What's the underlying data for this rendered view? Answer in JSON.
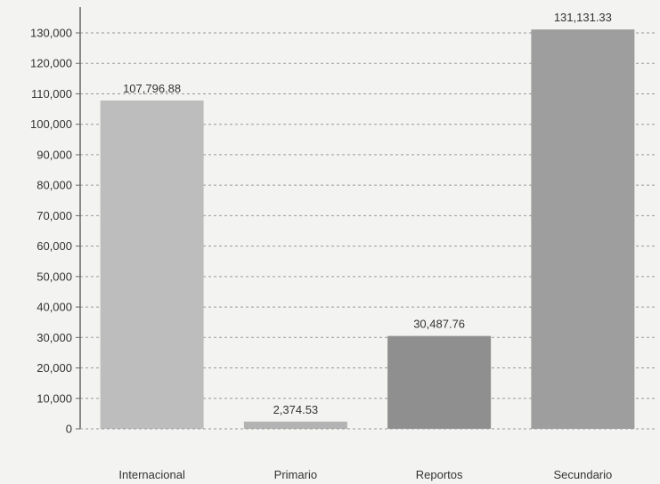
{
  "chart_data": {
    "type": "bar",
    "categories": [
      "Internacional",
      "Primario",
      "Reportos",
      "Secundario"
    ],
    "values": [
      107796.88,
      2374.53,
      30487.76,
      131131.33
    ],
    "data_labels": [
      "107,796.88",
      "2,374.53",
      "30,487.76",
      "131,131.33"
    ],
    "colors": [
      "#bdbdbd",
      "#b3b3b3",
      "#8f8f8f",
      "#9e9e9e"
    ],
    "ylim": [
      0,
      130000
    ],
    "yticks": [
      0,
      10000,
      20000,
      30000,
      40000,
      50000,
      60000,
      70000,
      80000,
      90000,
      100000,
      110000,
      120000,
      130000
    ],
    "ytick_labels": [
      "0",
      "10,000",
      "20,000",
      "30,000",
      "40,000",
      "50,000",
      "60,000",
      "70,000",
      "80,000",
      "90,000",
      "100,000",
      "110,000",
      "120,000",
      "130,000"
    ],
    "grid": true,
    "legend": "none",
    "title": "",
    "xlabel": "",
    "ylabel": ""
  }
}
